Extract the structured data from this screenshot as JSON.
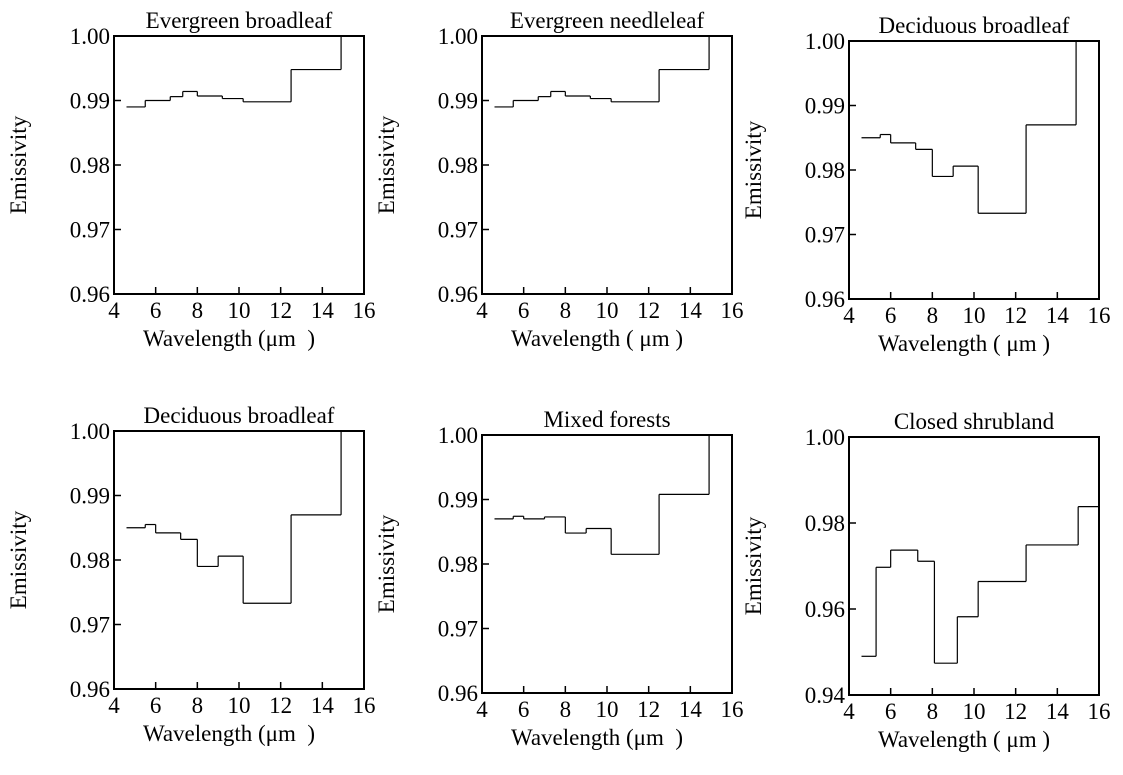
{
  "chart_data": [
    {
      "type": "line",
      "title": "Evergreen broadleaf",
      "xlabel": "Wavelength (μm  )",
      "ylabel": "Emissivity",
      "xlim": [
        4,
        16
      ],
      "ylim": [
        0.96,
        1.0
      ],
      "xticks": [
        "4",
        "6",
        "8",
        "10",
        "12",
        "14",
        "16"
      ],
      "yticks": [
        "0.96",
        "0.97",
        "0.98",
        "0.99",
        "1.00"
      ],
      "steps": [
        {
          "x0": 4.6,
          "x1": 5.5,
          "y": 0.989
        },
        {
          "x0": 5.5,
          "x1": 6.7,
          "y": 0.99
        },
        {
          "x0": 6.7,
          "x1": 7.3,
          "y": 0.9906
        },
        {
          "x0": 7.3,
          "x1": 8.0,
          "y": 0.9914
        },
        {
          "x0": 8.0,
          "x1": 9.2,
          "y": 0.9907
        },
        {
          "x0": 9.2,
          "x1": 10.2,
          "y": 0.9903
        },
        {
          "x0": 10.2,
          "x1": 12.5,
          "y": 0.9898
        },
        {
          "x0": 12.5,
          "x1": 14.9,
          "y": 0.9948
        },
        {
          "x0": 14.9,
          "x1": 15.0,
          "y": 1.0
        }
      ]
    },
    {
      "type": "line",
      "title": "Evergreen needleleaf",
      "xlabel": "Wavelength ( μm )",
      "ylabel": "Emissivity",
      "xlim": [
        4,
        16
      ],
      "ylim": [
        0.96,
        1.0
      ],
      "xticks": [
        "4",
        "6",
        "8",
        "10",
        "12",
        "14",
        "16"
      ],
      "yticks": [
        "0.96",
        "0.97",
        "0.98",
        "0.99",
        "1.00"
      ],
      "steps": [
        {
          "x0": 4.6,
          "x1": 5.5,
          "y": 0.989
        },
        {
          "x0": 5.5,
          "x1": 6.7,
          "y": 0.99
        },
        {
          "x0": 6.7,
          "x1": 7.3,
          "y": 0.9906
        },
        {
          "x0": 7.3,
          "x1": 8.0,
          "y": 0.9914
        },
        {
          "x0": 8.0,
          "x1": 9.2,
          "y": 0.9907
        },
        {
          "x0": 9.2,
          "x1": 10.2,
          "y": 0.9903
        },
        {
          "x0": 10.2,
          "x1": 12.5,
          "y": 0.9898
        },
        {
          "x0": 12.5,
          "x1": 14.9,
          "y": 0.9948
        },
        {
          "x0": 14.9,
          "x1": 15.0,
          "y": 1.0
        }
      ]
    },
    {
      "type": "line",
      "title": "Deciduous broadleaf",
      "xlabel": "Wavelength ( μm )",
      "ylabel": "Emissivity",
      "xlim": [
        4,
        16
      ],
      "ylim": [
        0.96,
        1.0
      ],
      "xticks": [
        "4",
        "6",
        "8",
        "10",
        "12",
        "14",
        "16"
      ],
      "yticks": [
        "0.96",
        "0.97",
        "0.98",
        "0.99",
        "1.00"
      ],
      "steps": [
        {
          "x0": 4.6,
          "x1": 5.5,
          "y": 0.985
        },
        {
          "x0": 5.5,
          "x1": 6.0,
          "y": 0.9855
        },
        {
          "x0": 6.0,
          "x1": 7.2,
          "y": 0.9842
        },
        {
          "x0": 7.2,
          "x1": 8.0,
          "y": 0.9832
        },
        {
          "x0": 8.0,
          "x1": 9.0,
          "y": 0.979
        },
        {
          "x0": 9.0,
          "x1": 10.2,
          "y": 0.9806
        },
        {
          "x0": 10.2,
          "x1": 12.5,
          "y": 0.9733
        },
        {
          "x0": 12.5,
          "x1": 14.9,
          "y": 0.987
        },
        {
          "x0": 14.9,
          "x1": 15.0,
          "y": 1.0
        }
      ]
    },
    {
      "type": "line",
      "title": "Deciduous broadleaf",
      "xlabel": "Wavelength (μm  )",
      "ylabel": "Emissivity",
      "xlim": [
        4,
        16
      ],
      "ylim": [
        0.96,
        1.0
      ],
      "xticks": [
        "4",
        "6",
        "8",
        "10",
        "12",
        "14",
        "16"
      ],
      "yticks": [
        "0.96",
        "0.97",
        "0.98",
        "0.99",
        "1.00"
      ],
      "steps": [
        {
          "x0": 4.6,
          "x1": 5.5,
          "y": 0.985
        },
        {
          "x0": 5.5,
          "x1": 6.0,
          "y": 0.9855
        },
        {
          "x0": 6.0,
          "x1": 7.2,
          "y": 0.9842
        },
        {
          "x0": 7.2,
          "x1": 8.0,
          "y": 0.9832
        },
        {
          "x0": 8.0,
          "x1": 9.0,
          "y": 0.979
        },
        {
          "x0": 9.0,
          "x1": 10.2,
          "y": 0.9806
        },
        {
          "x0": 10.2,
          "x1": 12.5,
          "y": 0.9733
        },
        {
          "x0": 12.5,
          "x1": 14.9,
          "y": 0.987
        },
        {
          "x0": 14.9,
          "x1": 15.0,
          "y": 1.0
        }
      ]
    },
    {
      "type": "line",
      "title": "Mixed forests",
      "xlabel": "Wavelength (μm  )",
      "ylabel": "Emissivity",
      "xlim": [
        4,
        16
      ],
      "ylim": [
        0.96,
        1.0
      ],
      "xticks": [
        "4",
        "6",
        "8",
        "10",
        "12",
        "14",
        "16"
      ],
      "yticks": [
        "0.96",
        "0.97",
        "0.98",
        "0.99",
        "1.00"
      ],
      "steps": [
        {
          "x0": 4.6,
          "x1": 5.5,
          "y": 0.987
        },
        {
          "x0": 5.5,
          "x1": 6.0,
          "y": 0.9874
        },
        {
          "x0": 6.0,
          "x1": 7.0,
          "y": 0.987
        },
        {
          "x0": 7.0,
          "x1": 8.0,
          "y": 0.9873
        },
        {
          "x0": 8.0,
          "x1": 9.0,
          "y": 0.9848
        },
        {
          "x0": 9.0,
          "x1": 10.2,
          "y": 0.9855
        },
        {
          "x0": 10.2,
          "x1": 12.5,
          "y": 0.9815
        },
        {
          "x0": 12.5,
          "x1": 14.9,
          "y": 0.9908
        },
        {
          "x0": 14.9,
          "x1": 15.0,
          "y": 1.0
        }
      ]
    },
    {
      "type": "line",
      "title": "Closed shrubland",
      "xlabel": "Wavelength ( μm )",
      "ylabel": "Emissivity",
      "xlim": [
        4,
        16
      ],
      "ylim": [
        0.94,
        1.0
      ],
      "xticks": [
        "4",
        "6",
        "8",
        "10",
        "12",
        "14",
        "16"
      ],
      "yticks": [
        "0.94",
        "0.96",
        "0.98",
        "1.00"
      ],
      "steps": [
        {
          "x0": 4.6,
          "x1": 5.3,
          "y": 0.949
        },
        {
          "x0": 5.3,
          "x1": 6.0,
          "y": 0.9697
        },
        {
          "x0": 6.0,
          "x1": 7.3,
          "y": 0.9737
        },
        {
          "x0": 7.3,
          "x1": 8.1,
          "y": 0.9711
        },
        {
          "x0": 8.1,
          "x1": 9.2,
          "y": 0.9474
        },
        {
          "x0": 9.2,
          "x1": 10.2,
          "y": 0.9582
        },
        {
          "x0": 10.2,
          "x1": 12.5,
          "y": 0.9664
        },
        {
          "x0": 12.5,
          "x1": 15.0,
          "y": 0.9749
        },
        {
          "x0": 15.0,
          "x1": 16.0,
          "y": 0.9838
        }
      ]
    }
  ]
}
